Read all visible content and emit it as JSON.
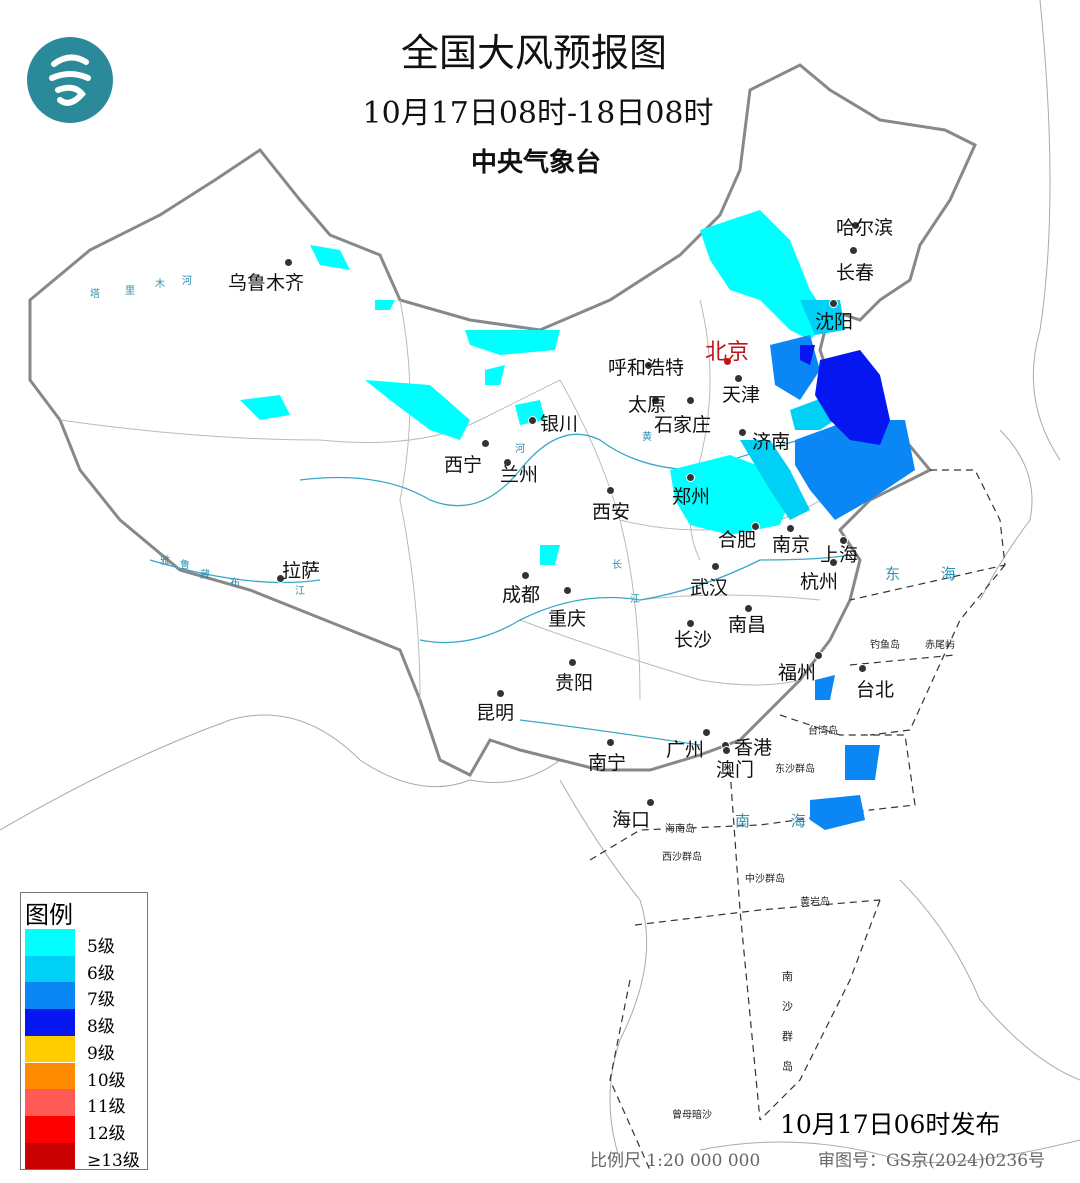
{
  "header": {
    "title": "全国大风预报图",
    "period": "10月17日08时-18日08时",
    "issuer": "中央气象台"
  },
  "logo": {
    "icon": "cma-logo",
    "color": "#2a8a9a"
  },
  "cities": [
    "乌鲁木齐",
    "呼和浩特",
    "北京",
    "天津",
    "太原",
    "石家庄",
    "济南",
    "银川",
    "西宁",
    "兰州",
    "郑州",
    "西安",
    "合肥",
    "南京",
    "上海",
    "杭州",
    "武汉",
    "南昌",
    "长沙",
    "成都",
    "重庆",
    "贵阳",
    "昆明",
    "拉萨",
    "南宁",
    "广州",
    "香港",
    "澳门",
    "海口",
    "福州",
    "台北",
    "哈尔滨",
    "长春",
    "沈阳"
  ],
  "capital_color": "#c0141c",
  "seas": [
    "东海",
    "南海"
  ],
  "islands": [
    "钓鱼岛",
    "赤尾屿",
    "台湾岛",
    "东沙群岛",
    "海南岛",
    "西沙群岛",
    "中沙群岛",
    "黄岩岛",
    "南沙群岛",
    "曾母暗沙"
  ],
  "rivers": [
    "黄",
    "河",
    "长",
    "江",
    "塔",
    "里",
    "木",
    "河",
    "雅",
    "鲁",
    "藏",
    "布",
    "江"
  ],
  "legend": {
    "title": "图例",
    "items": [
      {
        "label": "5级",
        "color": "#00ffff"
      },
      {
        "label": "6级",
        "color": "#00d0f5"
      },
      {
        "label": "7级",
        "color": "#0a86f5"
      },
      {
        "label": "8级",
        "color": "#0516f0"
      },
      {
        "label": "9级",
        "color": "#ffcc00"
      },
      {
        "label": "10级",
        "color": "#ff8c00"
      },
      {
        "label": "11级",
        "color": "#ff5a55"
      },
      {
        "label": "12级",
        "color": "#ff0000"
      },
      {
        "label": "≥13级",
        "color": "#c80000"
      }
    ]
  },
  "footer": {
    "issued": "10月17日06时发布",
    "scale": "比例尺 1:20 000 000",
    "review_no": "审图号：GS京(2024)0236号"
  }
}
